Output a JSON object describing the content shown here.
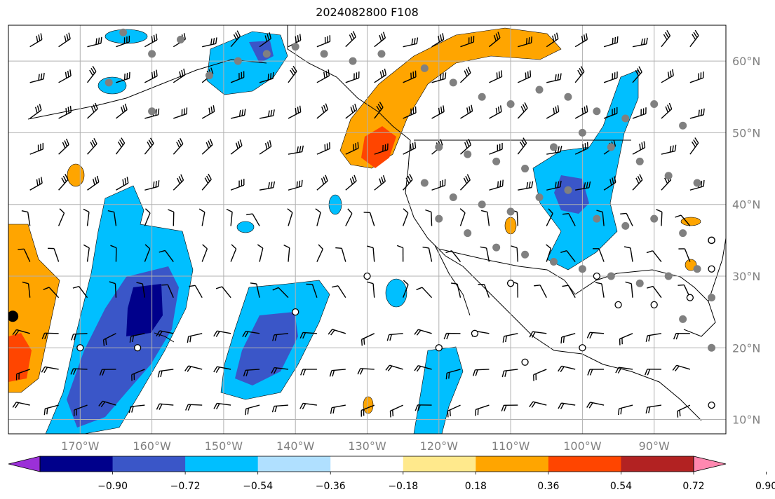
{
  "title": "2024082800 F108",
  "map": {
    "projection": "equirectangular",
    "extent": {
      "lon_min": -180,
      "lon_max": -80,
      "lat_min": 8,
      "lat_max": 65
    },
    "meridians": [
      -170,
      -160,
      -150,
      -140,
      -130,
      -120,
      -110,
      -100,
      -90
    ],
    "parallels": [
      10,
      20,
      30,
      40,
      50,
      60
    ],
    "lon_labels": [
      "170°W",
      "160°W",
      "150°W",
      "140°W",
      "130°W",
      "120°W",
      "110°W",
      "100°W",
      "90°W"
    ],
    "lat_labels": [
      "10°N",
      "20°N",
      "30°N",
      "40°N",
      "50°N",
      "60°N"
    ]
  },
  "colorbar": {
    "ticks": [
      "−0.90",
      "−0.72",
      "−0.54",
      "−0.36",
      "−0.18",
      "0.18",
      "0.36",
      "0.54",
      "0.72",
      "0.90"
    ],
    "colors": [
      "#9b30d8",
      "#00008b",
      "#3a56c8",
      "#00bfff",
      "#b0e0ff",
      "#ffffff",
      "#ffe98c",
      "#ffa500",
      "#ff4500",
      "#b22222",
      "#ff88b0"
    ]
  },
  "fields": {
    "negative": {
      "colors": {
        "level1": "#00bfff",
        "level2": "#3a56c8",
        "level3": "#00008b"
      }
    },
    "positive": {
      "colors": {
        "level1": "#ffa500",
        "level2": "#ff4500"
      }
    },
    "station_dot_color": "#808080"
  },
  "legend_colors": {
    "outline": "#000000",
    "grid": "#b0b0b0",
    "coast": "#000000"
  }
}
